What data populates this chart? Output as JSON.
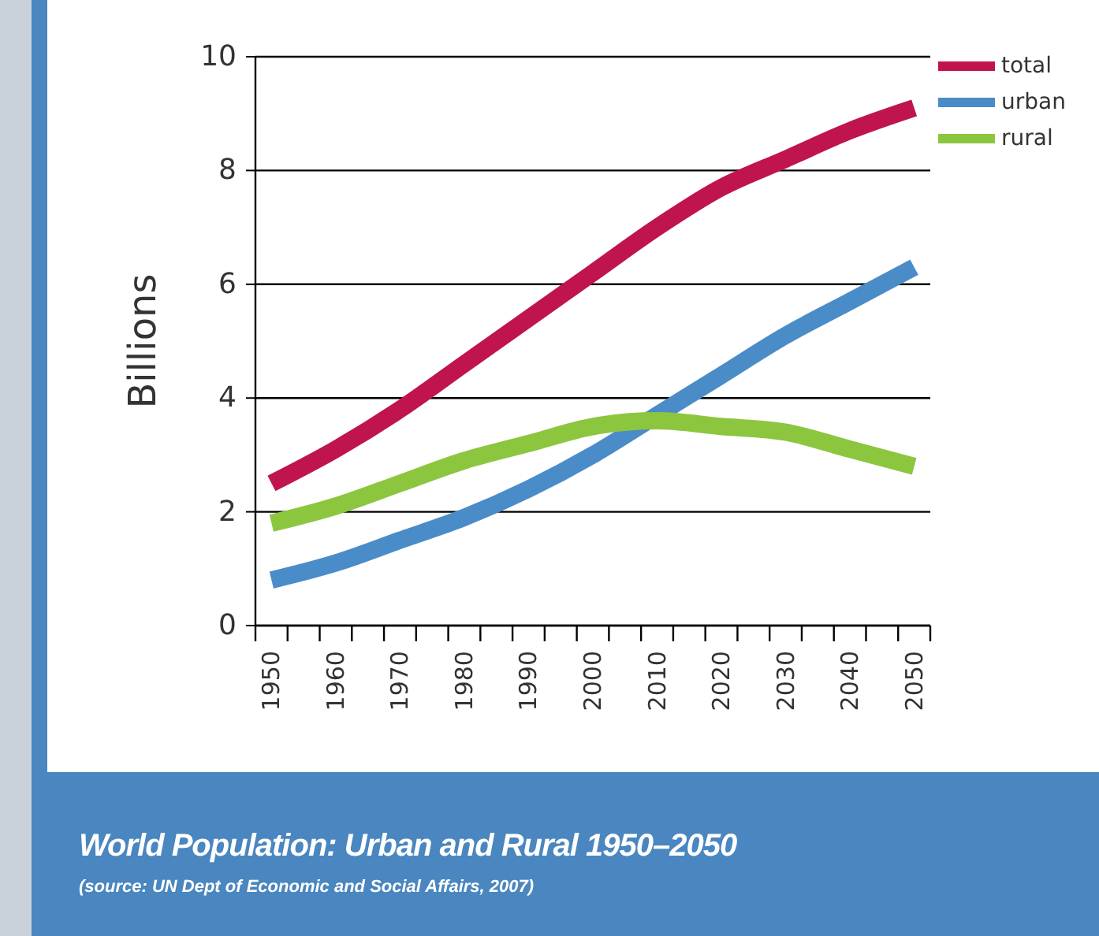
{
  "chart_data": {
    "type": "line",
    "title": "World Population: Urban and Rural 1950–2050",
    "annotations": [
      "(source: UN Dept of Economic and Social Affairs, 2007)"
    ],
    "ylabel": "Billions",
    "x": [
      1950,
      1960,
      1970,
      1980,
      1990,
      2000,
      2010,
      2020,
      2030,
      2040,
      2050
    ],
    "series": [
      {
        "name": "total",
        "color": "#c0144e",
        "values": [
          2.5,
          3.1,
          3.8,
          4.6,
          5.4,
          6.2,
          7.0,
          7.7,
          8.2,
          8.7,
          9.1
        ]
      },
      {
        "name": "urban",
        "color": "#4a8cc8",
        "values": [
          0.8,
          1.1,
          1.5,
          1.9,
          2.4,
          3.0,
          3.7,
          4.4,
          5.1,
          5.7,
          6.3
        ]
      },
      {
        "name": "rural",
        "color": "#8cc63f",
        "values": [
          1.8,
          2.1,
          2.5,
          2.9,
          3.2,
          3.5,
          3.6,
          3.5,
          3.4,
          3.1,
          2.8
        ]
      }
    ],
    "xlim": [
      1947.5,
      2052.5
    ],
    "xticks": [
      {
        "value": 1947.5,
        "label": null
      },
      1950,
      {
        "value": 1952.5,
        "label": null
      },
      {
        "value": 1957.5,
        "label": null
      },
      1960,
      {
        "value": 1962.5,
        "label": null
      },
      {
        "value": 1967.5,
        "label": null
      },
      1970,
      {
        "value": 1972.5,
        "label": null
      },
      {
        "value": 1977.5,
        "label": null
      },
      1980,
      {
        "value": 1982.5,
        "label": null
      },
      {
        "value": 1987.5,
        "label": null
      },
      1990,
      {
        "value": 1992.5,
        "label": null
      },
      {
        "value": 1997.5,
        "label": null
      },
      2000,
      {
        "value": 2002.5,
        "label": null
      },
      {
        "value": 2007.5,
        "label": null
      },
      2010,
      {
        "value": 2012.5,
        "label": null
      },
      {
        "value": 2017.5,
        "label": null
      },
      2020,
      {
        "value": 2022.5,
        "label": null
      },
      {
        "value": 2027.5,
        "label": null
      },
      2030,
      {
        "value": 2032.5,
        "label": null
      },
      {
        "value": 2037.5,
        "label": null
      },
      2040,
      {
        "value": 2042.5,
        "label": null
      },
      {
        "value": 2047.5,
        "label": null
      },
      2050,
      {
        "value": 2052.5,
        "label": null
      }
    ],
    "ylim": [
      0,
      10
    ],
    "yticks": [
      0,
      2,
      4,
      6,
      8,
      10
    ],
    "grid": "y",
    "legend": "top right",
    "marker": "none",
    "line_style": "solid"
  }
}
